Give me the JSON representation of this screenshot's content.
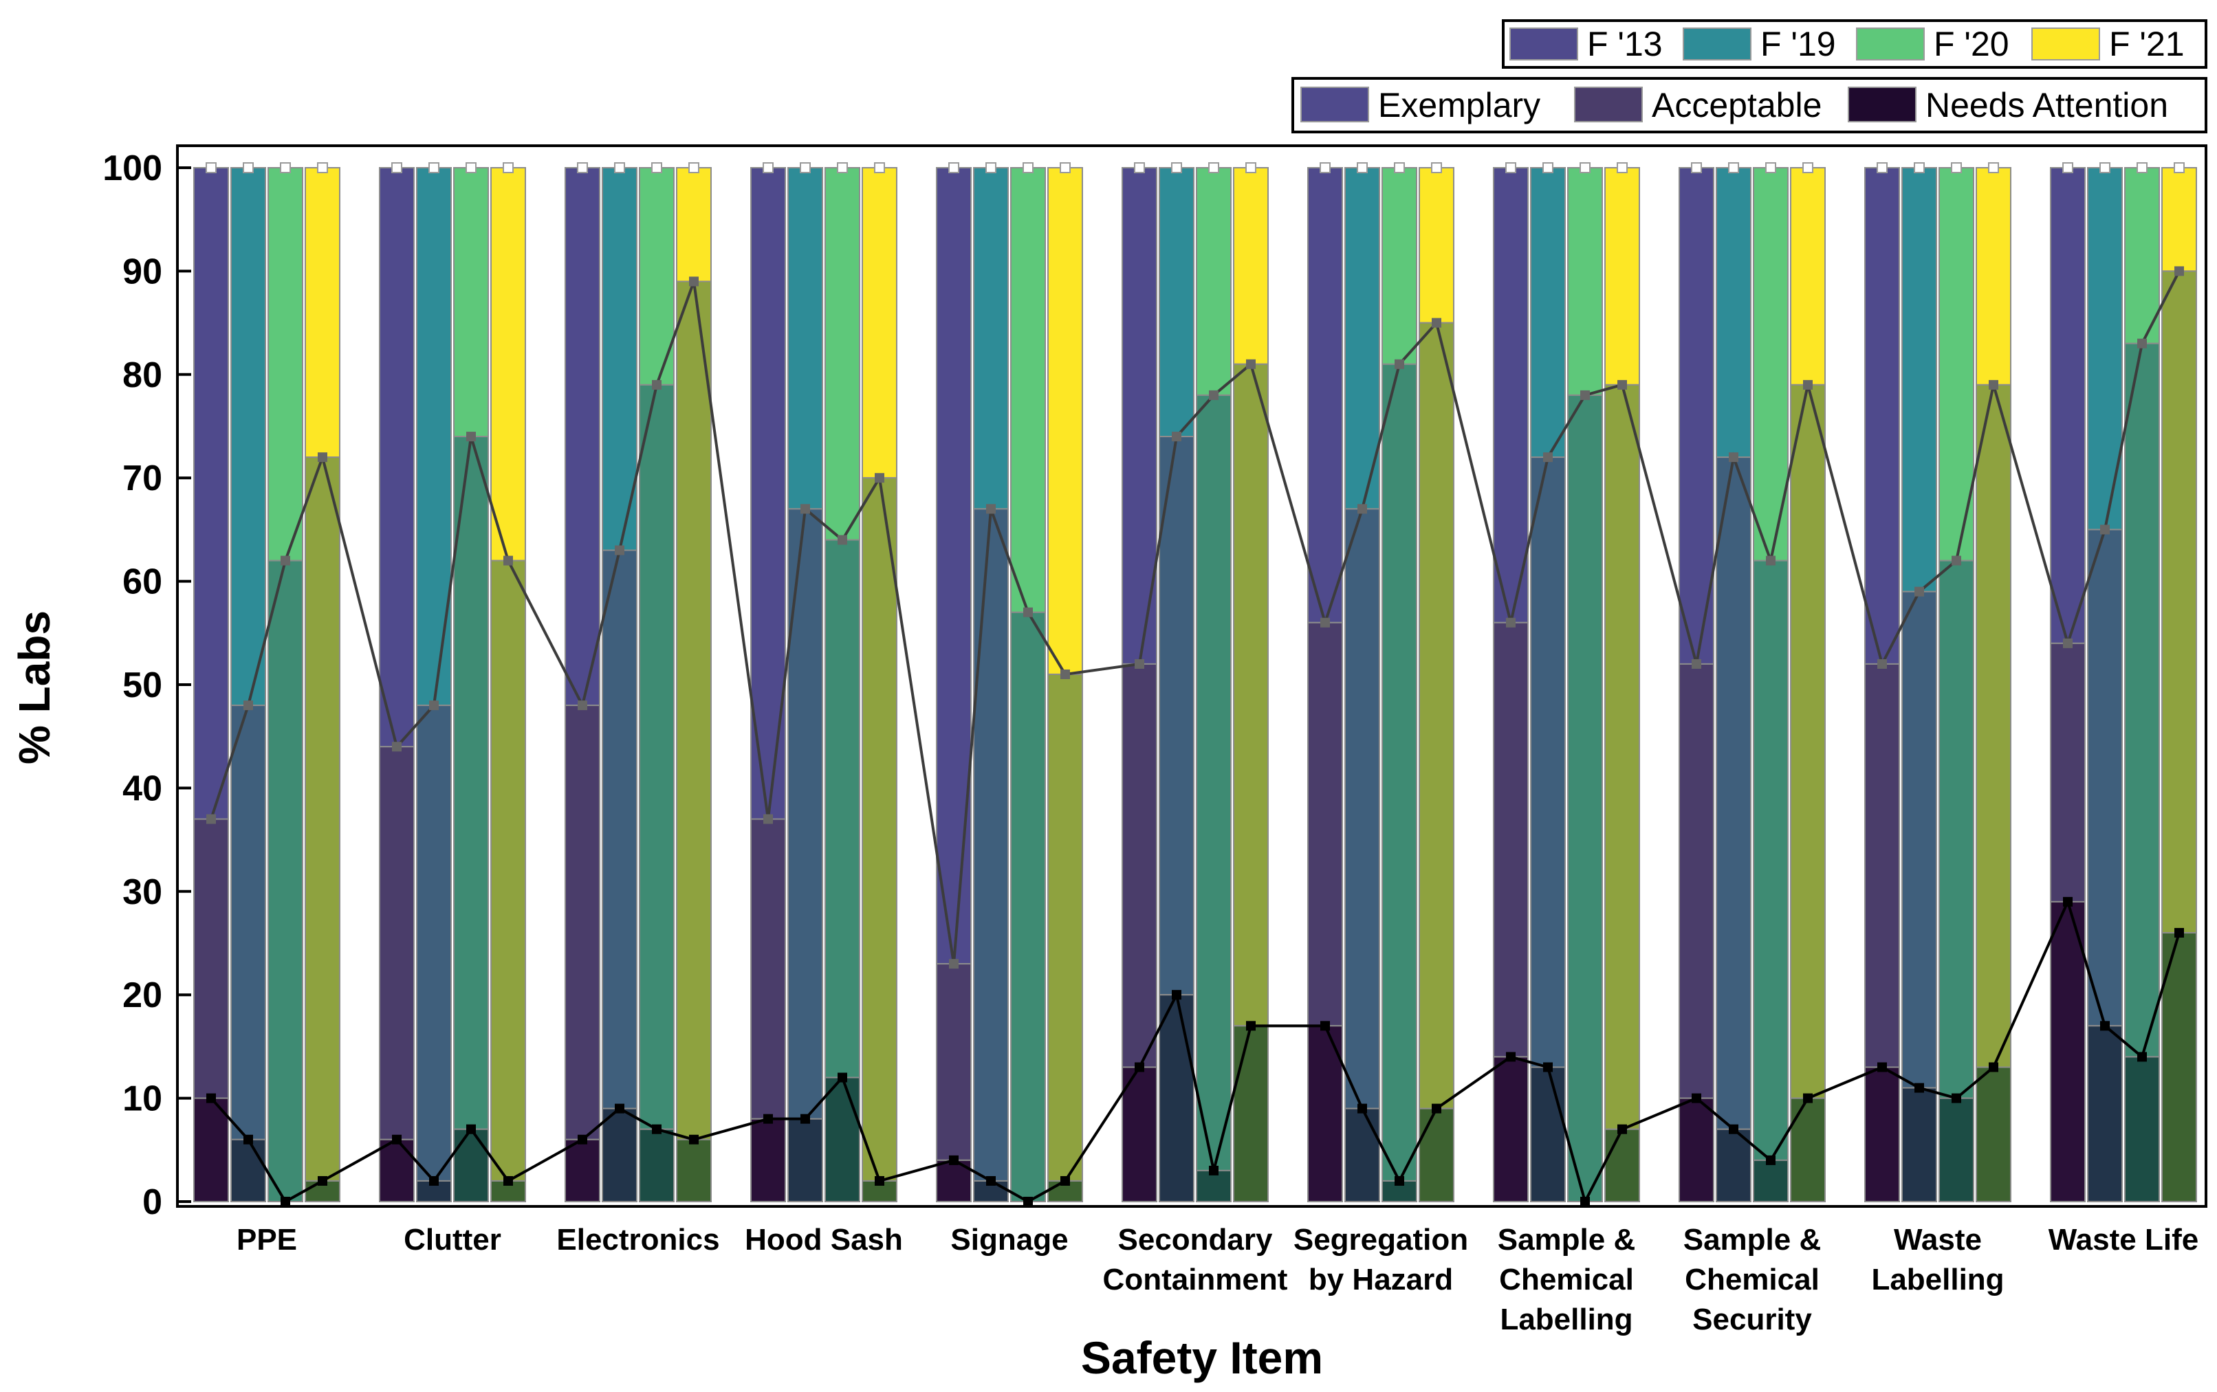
{
  "chart_data": {
    "type": "bar",
    "title": "",
    "xlabel": "Safety Item",
    "ylabel": "% Labs",
    "ylim": [
      0,
      100
    ],
    "yticks": [
      0,
      10,
      20,
      30,
      40,
      50,
      60,
      70,
      80,
      90,
      100
    ],
    "categories": [
      [
        "PPE"
      ],
      [
        "Clutter"
      ],
      [
        "Electronics"
      ],
      [
        "Hood Sash"
      ],
      [
        "Signage"
      ],
      [
        "Secondary",
        "Containment"
      ],
      [
        "Segregation",
        "by Hazard"
      ],
      [
        "Sample &",
        "Chemical",
        "Labelling"
      ],
      [
        "Sample &",
        "Chemical",
        "Security"
      ],
      [
        "Waste",
        "Labelling"
      ],
      [
        "Waste Life"
      ]
    ],
    "years": [
      {
        "name": "F '13",
        "color": "#4f4a8c"
      },
      {
        "name": "F '19",
        "color": "#2e8c97"
      },
      {
        "name": "F '20",
        "color": "#5ec87a"
      },
      {
        "name": "F '21",
        "color": "#fde725"
      }
    ],
    "ratings": [
      {
        "name": "Exemplary",
        "color": "#4f4a8c"
      },
      {
        "name": "Acceptable",
        "color": "#4a3d6a"
      },
      {
        "name": "Needs Attention",
        "color": "#1f0a2e"
      }
    ],
    "series": [
      {
        "name": "F '13",
        "acceptable_plus_needs": [
          37,
          44,
          48,
          37,
          23,
          52,
          56,
          56,
          52,
          52,
          54
        ],
        "needs_attention": [
          10,
          6,
          6,
          8,
          4,
          13,
          17,
          14,
          10,
          13,
          29
        ],
        "total": [
          100,
          100,
          100,
          100,
          100,
          100,
          100,
          100,
          100,
          100,
          100
        ]
      },
      {
        "name": "F '19",
        "acceptable_plus_needs": [
          48,
          48,
          63,
          67,
          67,
          74,
          67,
          72,
          72,
          59,
          65
        ],
        "needs_attention": [
          6,
          2,
          9,
          8,
          2,
          20,
          9,
          13,
          7,
          11,
          17
        ],
        "total": [
          100,
          100,
          100,
          100,
          100,
          100,
          100,
          100,
          100,
          100,
          100
        ]
      },
      {
        "name": "F '20",
        "acceptable_plus_needs": [
          62,
          74,
          79,
          64,
          57,
          78,
          81,
          78,
          62,
          62,
          83
        ],
        "needs_attention": [
          0,
          7,
          7,
          12,
          0,
          3,
          2,
          0,
          4,
          10,
          14
        ],
        "total": [
          100,
          100,
          100,
          100,
          100,
          100,
          100,
          100,
          100,
          100,
          100
        ]
      },
      {
        "name": "F '21",
        "acceptable_plus_needs": [
          72,
          62,
          89,
          70,
          51,
          81,
          85,
          79,
          79,
          79,
          90
        ],
        "needs_attention": [
          2,
          2,
          6,
          2,
          2,
          17,
          9,
          7,
          10,
          13,
          26
        ],
        "total": [
          100,
          100,
          100,
          100,
          100,
          100,
          100,
          100,
          100,
          100,
          100
        ]
      }
    ],
    "legend_position": "top-right"
  }
}
